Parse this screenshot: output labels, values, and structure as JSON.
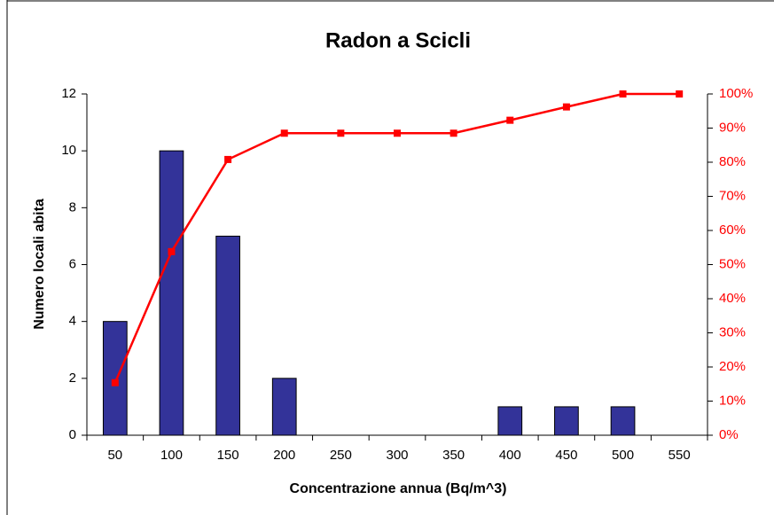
{
  "chart_data": {
    "type": "combo",
    "title": "Radon a Scicli",
    "x_label": "Concentrazione annua (Bq/m^3)",
    "y_label": "Numero locali abita",
    "categories": [
      "50",
      "100",
      "150",
      "200",
      "250",
      "300",
      "350",
      "400",
      "450",
      "500",
      "550"
    ],
    "series": [
      {
        "type": "bar",
        "color": "#333399",
        "values": [
          4,
          10,
          7,
          2,
          0,
          0,
          0,
          1,
          1,
          1,
          0
        ]
      },
      {
        "type": "line",
        "color": "#ff0000",
        "axis": "y2",
        "values": [
          15.4,
          53.8,
          80.8,
          88.5,
          88.5,
          88.5,
          88.5,
          92.3,
          96.2,
          100,
          100
        ]
      }
    ],
    "ylim": [
      0,
      12
    ],
    "yticks": [
      0,
      2,
      4,
      6,
      8,
      10,
      12
    ],
    "y2lim": [
      0,
      100
    ],
    "y2ticks": [
      {
        "value": 0,
        "label": "0%"
      },
      {
        "value": 10,
        "label": "10%"
      },
      {
        "value": 20,
        "label": "20%"
      },
      {
        "value": 30,
        "label": "30%"
      },
      {
        "value": 40,
        "label": "40%"
      },
      {
        "value": 50,
        "label": "50%"
      },
      {
        "value": 60,
        "label": "60%"
      },
      {
        "value": 70,
        "label": "70%"
      },
      {
        "value": 80,
        "label": "80%"
      },
      {
        "value": 90,
        "label": "90%"
      },
      {
        "value": 100,
        "label": "100%"
      }
    ],
    "grid": false
  }
}
